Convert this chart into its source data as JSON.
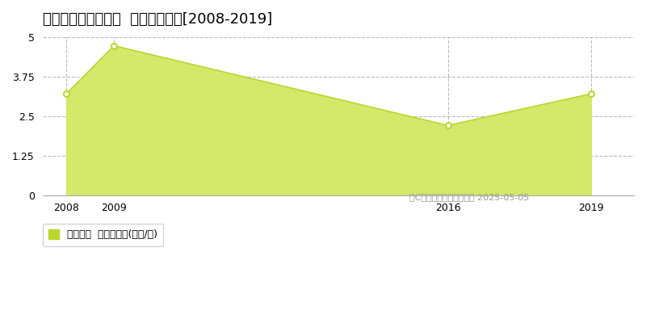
{
  "title": "岩手郡雫石町下町東  土地価格推移[2008-2019]",
  "x_values": [
    2008,
    2009,
    2016,
    2019
  ],
  "y_values": [
    3.2,
    4.72,
    2.2,
    3.2
  ],
  "line_color": "#bdd62e",
  "fill_color": "#d4e86a",
  "fill_alpha": 1.0,
  "marker_size": 5,
  "marker_facecolor": "#ffffff",
  "marker_edgecolor": "#bdd62e",
  "ylim": [
    0,
    5
  ],
  "yticks": [
    0,
    1.25,
    2.5,
    3.75,
    5
  ],
  "xlim_min": 2007.5,
  "xlim_max": 2019.9,
  "grid_color": "#bbbbbb",
  "grid_style": "--",
  "bg_color": "#ffffff",
  "legend_label": "土地価格  平均坪単価(万円/坪)",
  "legend_color": "#bdd62e",
  "copyright_text": "（C）土地価格ドットコム 2025-05-05",
  "title_fontsize": 13,
  "axis_fontsize": 9,
  "legend_fontsize": 9
}
